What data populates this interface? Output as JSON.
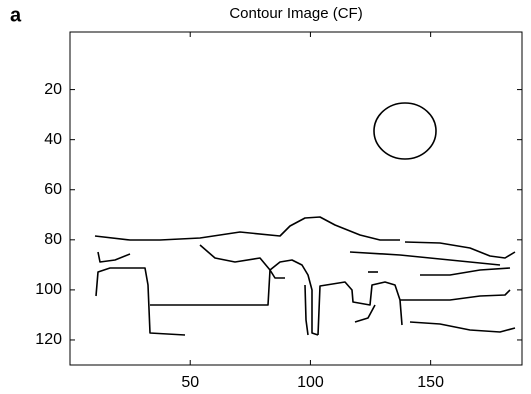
{
  "chart_data": {
    "type": "image",
    "panel_label": "a",
    "title": "Contour Image (CF)",
    "xlim": [
      0,
      188
    ],
    "xticks": [
      50,
      100,
      150
    ],
    "ylim": [
      -3,
      130
    ],
    "yticks": [
      20,
      40,
      60,
      80,
      100,
      120
    ],
    "y_reversed": true,
    "color": "#000000"
  }
}
